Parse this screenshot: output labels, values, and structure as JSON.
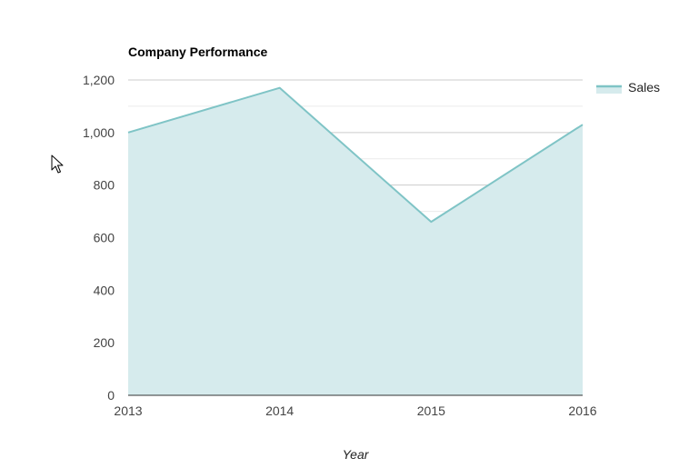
{
  "chart_data": {
    "type": "area",
    "title": "Company Performance",
    "xlabel": "Year",
    "ylabel": "",
    "categories": [
      "2013",
      "2014",
      "2015",
      "2016"
    ],
    "series": [
      {
        "name": "Sales",
        "values": [
          1000,
          1170,
          660,
          1030
        ]
      }
    ],
    "ylim": [
      0,
      1200
    ],
    "yticks": [
      0,
      200,
      400,
      600,
      800,
      1000,
      1200
    ],
    "ytick_labels": [
      "0",
      "200",
      "400",
      "600",
      "800",
      "1,000",
      "1,200"
    ],
    "grid": true,
    "minor_grid": true,
    "legend": "right",
    "colors": {
      "line": "#7fc4c6",
      "fill": "#d6ebed",
      "grid": "#cccccc",
      "minor_grid": "#ebebeb",
      "baseline": "#333333"
    }
  },
  "cursor": {
    "icon": "mouse-pointer-icon"
  }
}
